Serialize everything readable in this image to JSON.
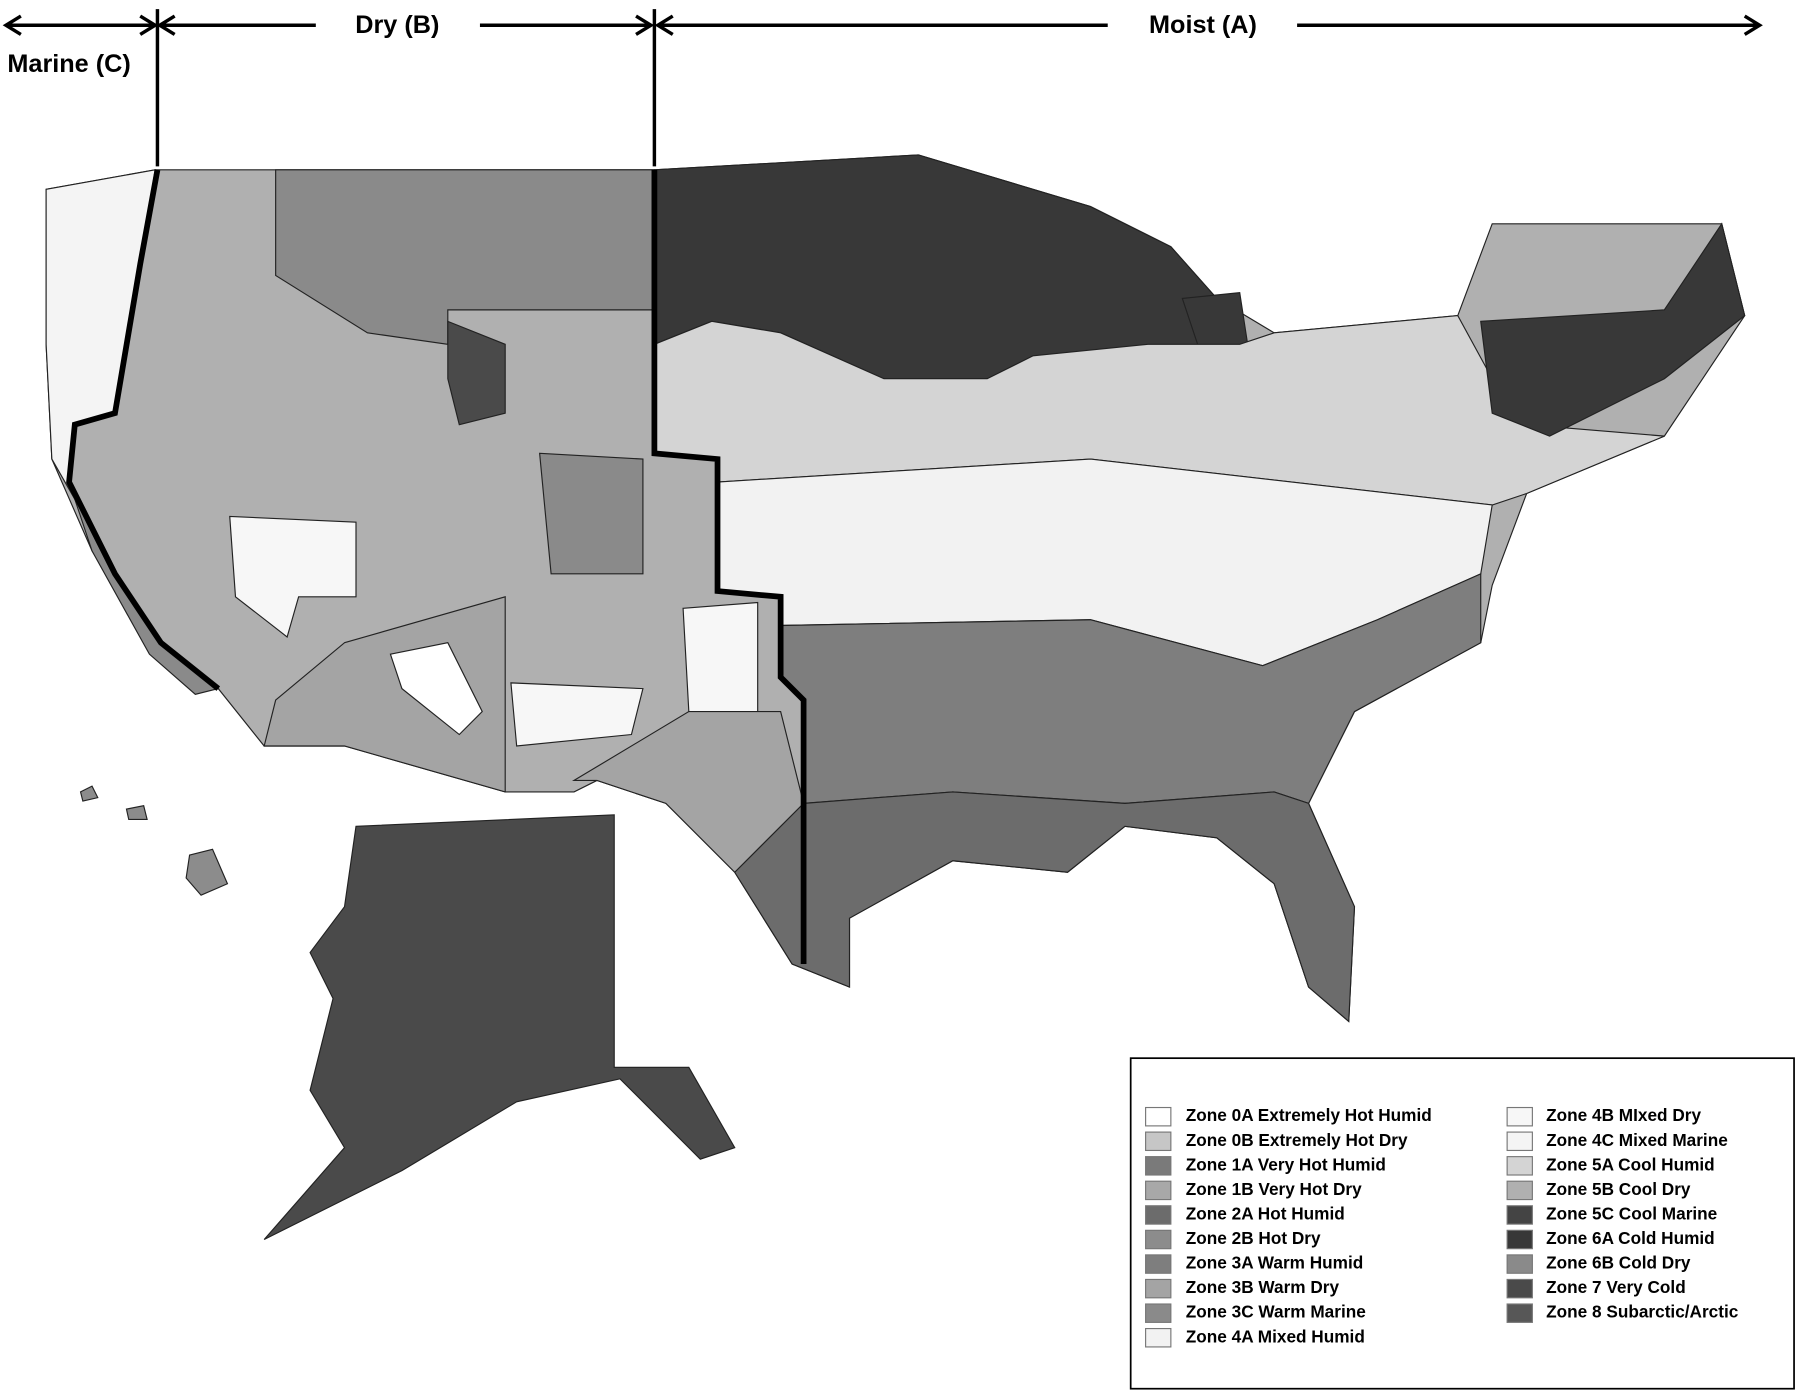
{
  "header": {
    "regions": [
      "Marine (C)",
      "Dry (B)",
      "Moist (A)"
    ]
  },
  "legend": {
    "items": [
      {
        "label": "Zone 0A Extremely Hot Humid",
        "color": "#ffffff"
      },
      {
        "label": "Zone 0B Extremely Hot Dry",
        "color": "#c6c6c6"
      },
      {
        "label": "Zone 1A Very Hot Humid",
        "color": "#7a7a7a"
      },
      {
        "label": "Zone 1B Very Hot Dry",
        "color": "#a8a8a8"
      },
      {
        "label": "Zone 2A Hot Humid",
        "color": "#6c6c6c"
      },
      {
        "label": "Zone 2B Hot Dry",
        "color": "#8c8c8c"
      },
      {
        "label": "Zone 3A Warm Humid",
        "color": "#7e7e7e"
      },
      {
        "label": "Zone 3B Warm Dry",
        "color": "#a4a4a4"
      },
      {
        "label": "Zone 3C Warm Marine",
        "color": "#8a8a8a"
      },
      {
        "label": "Zone 4A Mixed Humid",
        "color": "#f2f2f2"
      },
      {
        "label": "Zone 4B MIxed Dry",
        "color": "#f7f7f7"
      },
      {
        "label": "Zone 4C Mixed Marine",
        "color": "#f4f4f4"
      },
      {
        "label": "Zone 5A Cool Humid",
        "color": "#d4d4d4"
      },
      {
        "label": "Zone 5B Cool Dry",
        "color": "#b0b0b0"
      },
      {
        "label": "Zone 5C Cool Marine",
        "color": "#444444"
      },
      {
        "label": "Zone 6A Cold Humid",
        "color": "#383838"
      },
      {
        "label": "Zone 6B Cold Dry",
        "color": "#8a8a8a"
      },
      {
        "label": "Zone 7 Very Cold",
        "color": "#4a4a4a"
      },
      {
        "label": "Zone 8 Subarctic/Arctic",
        "color": "#575757"
      }
    ]
  }
}
